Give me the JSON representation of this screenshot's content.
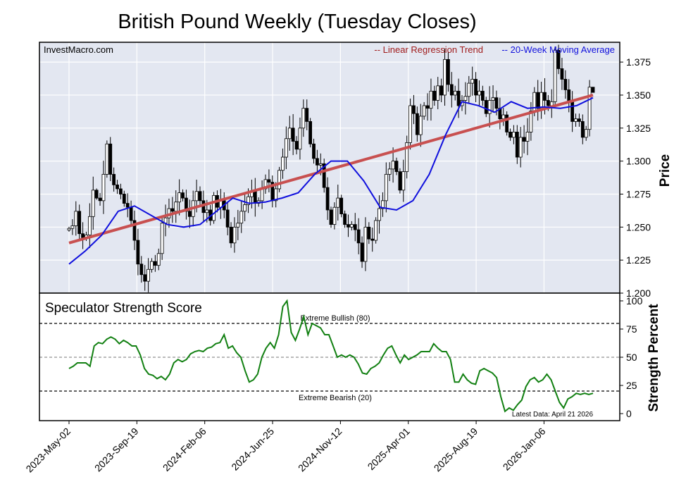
{
  "chart_data": [
    {
      "type": "candlestick",
      "title": "British Pound Weekly (Tuesday Closes)",
      "source_label": "InvestMacro.com",
      "ylabel": "Price",
      "ylim": [
        1.2,
        1.39
      ],
      "yticks": [
        1.2,
        1.225,
        1.25,
        1.275,
        1.3,
        1.325,
        1.35,
        1.375
      ],
      "ytick_labels": [
        "1.200",
        "1.225",
        "1.250",
        "1.275",
        "1.300",
        "1.325",
        "1.350",
        "1.375"
      ],
      "legend": [
        {
          "label": "-- Linear Regression Trend",
          "color": "#a01c1c"
        },
        {
          "label": "-- 20-Week Moving Average",
          "color": "#1010dd"
        }
      ],
      "legend_placement": "top-right",
      "grid": true,
      "up_color": "#ffffff",
      "down_color": "#000000",
      "trend": {
        "start": 1.238,
        "end": 1.35,
        "color": "#c85050"
      },
      "ma_color": "#1010dd",
      "ma_anchors": [
        1.222,
        1.232,
        1.244,
        1.262,
        1.266,
        1.259,
        1.252,
        1.25,
        1.252,
        1.262,
        1.272,
        1.268,
        1.269,
        1.272,
        1.276,
        1.29,
        1.3,
        1.3,
        1.285,
        1.265,
        1.263,
        1.27,
        1.29,
        1.32,
        1.345,
        1.342,
        1.337,
        1.345,
        1.34,
        1.341,
        1.34,
        1.342,
        1.348
      ],
      "closes": [
        1.249,
        1.251,
        1.262,
        1.245,
        1.242,
        1.244,
        1.258,
        1.278,
        1.272,
        1.27,
        1.29,
        1.313,
        1.29,
        1.282,
        1.279,
        1.275,
        1.268,
        1.265,
        1.255,
        1.24,
        1.222,
        1.214,
        1.209,
        1.218,
        1.224,
        1.221,
        1.23,
        1.253,
        1.257,
        1.264,
        1.262,
        1.269,
        1.276,
        1.272,
        1.262,
        1.258,
        1.27,
        1.277,
        1.27,
        1.261,
        1.263,
        1.255,
        1.274,
        1.265,
        1.27,
        1.263,
        1.25,
        1.238,
        1.25,
        1.253,
        1.262,
        1.267,
        1.273,
        1.277,
        1.268,
        1.27,
        1.279,
        1.286,
        1.284,
        1.27,
        1.279,
        1.293,
        1.303,
        1.317,
        1.325,
        1.315,
        1.309,
        1.325,
        1.34,
        1.33,
        1.313,
        1.302,
        1.297,
        1.298,
        1.28,
        1.263,
        1.252,
        1.265,
        1.272,
        1.26,
        1.252,
        1.25,
        1.252,
        1.248,
        1.238,
        1.224,
        1.25,
        1.241,
        1.24,
        1.255,
        1.264,
        1.27,
        1.29,
        1.294,
        1.3,
        1.292,
        1.278,
        1.292,
        1.314,
        1.342,
        1.336,
        1.32,
        1.334,
        1.342,
        1.34,
        1.353,
        1.346,
        1.357,
        1.35,
        1.377,
        1.358,
        1.35,
        1.353,
        1.342,
        1.346,
        1.349,
        1.359,
        1.362,
        1.35,
        1.353,
        1.346,
        1.336,
        1.346,
        1.348,
        1.34,
        1.332,
        1.335,
        1.322,
        1.318,
        1.322,
        1.303,
        1.318,
        1.315,
        1.322,
        1.338,
        1.352,
        1.34,
        1.352,
        1.346,
        1.342,
        1.345,
        1.384,
        1.37,
        1.362,
        1.354,
        1.345,
        1.33,
        1.332,
        1.33,
        1.318,
        1.324,
        1.356,
        1.352
      ],
      "bodies": [
        1.001,
        1.004,
        1.006,
        1.004,
        1.007,
        1.002,
        1.008,
        1.008,
        1.001,
        1.003,
        1.008,
        1.002,
        1.004,
        1.004,
        1.003,
        1.003,
        1.002,
        1.006,
        1.004,
        1.006,
        1.007,
        1.005,
        1.006,
        1.007,
        1.002,
        1.004,
        1.003,
        1.004,
        1.008,
        1.006,
        1.007,
        1.007,
        1.008,
        1.002,
        1.005,
        1.007,
        1.006,
        1.007,
        1.003,
        1.006,
        1.006,
        1.003,
        1.002,
        1.003,
        1.007,
        1.005,
        1.005,
        1.003,
        1.006,
        1.008,
        1.006,
        1.006,
        1.005,
        1.007,
        1.008,
        1.002,
        1.005,
        1.003,
        1.006,
        1.004,
        1.004,
        1.002,
        1.005,
        1.007,
        1.007,
        1.008,
        1.003,
        1.006,
        1.005,
        1.005,
        1.002,
        1.003,
        1.005,
        1.006,
        1.003,
        1.006,
        1.002,
        1.003,
        1.008,
        1.002,
        1.002,
        1.006,
        1.002,
        1.007,
        1.007,
        1.004,
        1.006,
        1.003,
        1.007,
        1.002,
        1.008,
        1.005,
        1.007,
        1.004,
        1.008,
        1.002,
        1.002,
        1.007,
        1.004,
        1.004,
        1.006,
        1.004,
        1.007,
        1.002,
        1.007,
        1.007,
        1.003,
        1.005,
        1.004,
        1.006,
        1.004,
        1.007,
        1.003,
        1.007,
        1.003,
        1.008,
        1.004,
        1.007,
        1.004,
        1.006,
        1.003,
        1.002,
        1.008,
        1.007,
        1.004,
        1.006,
        1.004,
        1.002,
        1.002,
        1.004,
        1.004,
        1.006,
        1.007,
        1.008,
        1.005,
        1.003,
        1.007,
        1.006,
        1.008,
        1.003,
        1.007,
        1.002,
        1.003,
        1.006,
        1.005,
        1.006,
        1.006,
        1.003,
        1.003,
        1.004,
        1.002,
        1.004
      ],
      "x_tick_labels": [
        "2023-May-02",
        "2023-Sep-19",
        "2024-Feb-06",
        "2024-Jun-25",
        "2024-Nov-12",
        "2025-Apr-01",
        "2025-Aug-19",
        "2026-Jan-06"
      ]
    },
    {
      "type": "line",
      "title": "Speculator Strength Score",
      "ylabel": "Strength Percent",
      "ylim": [
        0,
        100
      ],
      "yticks": [
        0,
        25,
        50,
        75,
        100
      ],
      "ytick_labels": [
        "0",
        "25",
        "50",
        "75",
        "100"
      ],
      "line_color": "#128012",
      "reference_lines": [
        {
          "value": 80,
          "label": "Extreme Bullish (80)"
        },
        {
          "value": 50,
          "label": ""
        },
        {
          "value": 20,
          "label": "Extreme Bearish (20)"
        }
      ],
      "footnote": "Latest Data: April 21 2026",
      "x_tick_labels": [
        "2023-May-02",
        "2023-Sep-19",
        "2024-Feb-06",
        "2024-Jun-25",
        "2024-Nov-12",
        "2025-Apr-01",
        "2025-Aug-19",
        "2026-Jan-06"
      ],
      "values": [
        40,
        42,
        45,
        45,
        45,
        42,
        60,
        63,
        62,
        66,
        68,
        66,
        62,
        65,
        63,
        60,
        60,
        52,
        40,
        35,
        34,
        31,
        33,
        30,
        35,
        45,
        48,
        46,
        48,
        53,
        55,
        56,
        55,
        58,
        59,
        62,
        63,
        70,
        58,
        60,
        54,
        50,
        38,
        28,
        30,
        35,
        50,
        58,
        63,
        58,
        70,
        95,
        100,
        72,
        65,
        75,
        86,
        70,
        80,
        78,
        76,
        70,
        70,
        60,
        50,
        52,
        50,
        52,
        50,
        44,
        36,
        35,
        40,
        42,
        45,
        52,
        58,
        60,
        52,
        45,
        52,
        48,
        50,
        52,
        55,
        55,
        55,
        62,
        58,
        55,
        55,
        48,
        28,
        28,
        35,
        30,
        27,
        26,
        38,
        40,
        38,
        36,
        32,
        15,
        2,
        5,
        3,
        8,
        12,
        24,
        30,
        32,
        28,
        30,
        35,
        30,
        20,
        10,
        5,
        13,
        15,
        18,
        17,
        18,
        17,
        18
      ]
    }
  ]
}
